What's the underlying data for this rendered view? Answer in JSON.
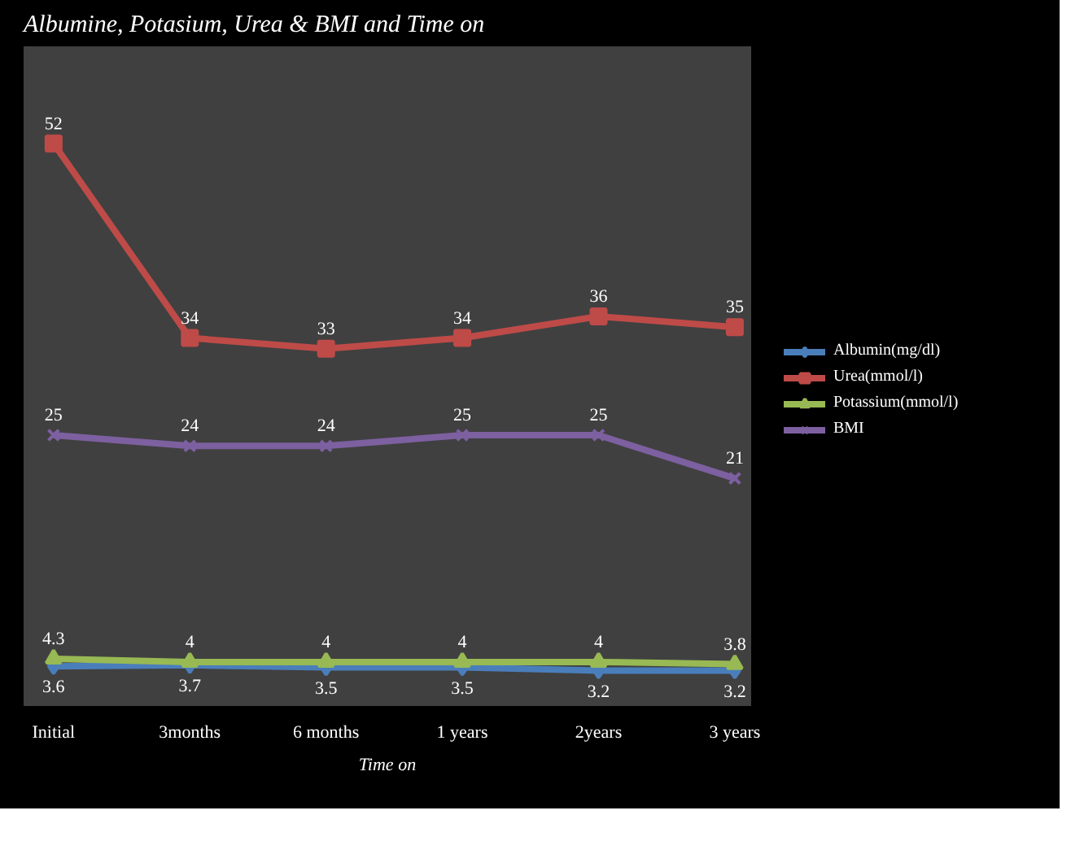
{
  "chart_data": {
    "type": "line",
    "title": "Albumine, Potasium, Urea & BMI and Time on",
    "xlabel": "Time on",
    "categories": [
      "Initial",
      "3months",
      "6 months",
      "1 years",
      "2years",
      "3 years"
    ],
    "ylim": [
      0,
      61
    ],
    "data_labels": true,
    "legend": "right",
    "grid": false,
    "line_style": "solid",
    "series": [
      {
        "name": "Albumin(mg/dl)",
        "color": "#4a7ebb",
        "marker": "diamond",
        "values": [
          3.6,
          3.7,
          3.5,
          3.5,
          3.2,
          3.2
        ]
      },
      {
        "name": "Urea(mmol/l)",
        "color": "#be4b48",
        "marker": "square",
        "values": [
          52,
          34,
          33,
          34,
          36,
          35
        ]
      },
      {
        "name": "Potassium(mmol/l)",
        "color": "#98b954",
        "marker": "triangle",
        "values": [
          4.3,
          4,
          4,
          4,
          4,
          3.8
        ]
      },
      {
        "name": "BMI",
        "color": "#7d60a0",
        "marker": "cross",
        "values": [
          25,
          24,
          24,
          25,
          25,
          21
        ]
      }
    ]
  }
}
